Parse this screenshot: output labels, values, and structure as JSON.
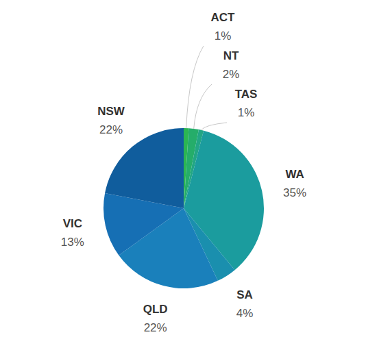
{
  "chart_data": {
    "type": "pie",
    "categories": [
      "ACT",
      "NT",
      "TAS",
      "WA",
      "SA",
      "QLD",
      "VIC",
      "NSW"
    ],
    "values": [
      1,
      2,
      1,
      35,
      4,
      22,
      13,
      22
    ],
    "value_labels": [
      "1%",
      "2%",
      "1%",
      "35%",
      "4%",
      "22%",
      "13%",
      "22%"
    ],
    "colors": [
      "#2bb552",
      "#25ad6a",
      "#22a684",
      "#1b9c9e",
      "#1a8fae",
      "#1a80bb",
      "#166fb4",
      "#105d9d"
    ],
    "data_labels": true
  }
}
